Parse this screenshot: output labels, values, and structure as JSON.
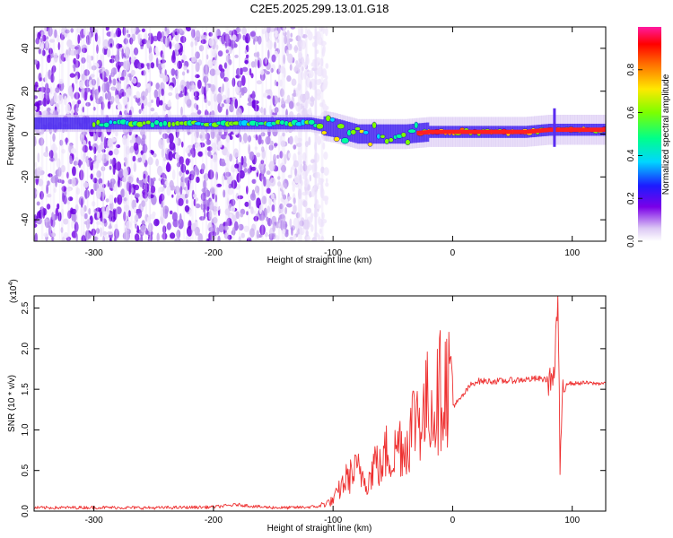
{
  "figure_title": "C2E5.2025.299.13.01.G18",
  "chart_data": [
    {
      "type": "heatmap",
      "title": "C2E5.2025.299.13.01.G18",
      "xlabel": "Height of straight line (km)",
      "ylabel": "Frequency (Hz)",
      "xlim": [
        -350,
        128
      ],
      "ylim": [
        -50,
        50
      ],
      "x_ticks": [
        -300,
        -200,
        -100,
        0,
        100
      ],
      "y_ticks": [
        -40,
        -20,
        0,
        20,
        40
      ],
      "x_tick_labels": [
        "-300",
        "-200",
        "-100",
        "0",
        "100"
      ],
      "y_tick_labels": [
        "-40",
        "-20",
        "0",
        "20",
        "40"
      ],
      "colorbar": {
        "label": "Normalized spectral amplitude",
        "range": [
          0,
          1
        ],
        "ticks": [
          0.0,
          0.2,
          0.4,
          0.6,
          0.8
        ],
        "tick_labels": [
          "0.0",
          "0.2",
          "0.4",
          "0.6",
          "0.8"
        ],
        "colormap": "rainbow (white-violet-blue-cyan-green-yellow-red-magenta)"
      },
      "dominant_frequency_track": {
        "x": [
          -350,
          -300,
          -250,
          -200,
          -150,
          -120,
          -100,
          -80,
          -60,
          -40,
          -20,
          0,
          20,
          40,
          60,
          80,
          100,
          128
        ],
        "y": [
          5,
          5,
          5,
          5,
          5,
          5,
          3,
          0,
          0,
          0,
          1,
          1,
          1,
          1,
          1,
          2,
          2,
          2
        ]
      },
      "noise_region_x": [
        -350,
        -110
      ]
    },
    {
      "type": "line",
      "title": "",
      "xlabel": "Height of straight line (km)",
      "ylabel": "SNR (10 * v/v)",
      "scale_label_base": "(x10",
      "scale_label_exp": "4",
      "scale_label_end": ")",
      "xlim": [
        -350,
        128
      ],
      "ylim": [
        0,
        26500
      ],
      "x_ticks": [
        -300,
        -200,
        -100,
        0,
        100
      ],
      "y_ticks": [
        0,
        5000,
        10000,
        15000,
        20000,
        25000
      ],
      "x_tick_labels": [
        "-300",
        "-200",
        "-100",
        "0",
        "100"
      ],
      "y_tick_labels": [
        "0.0",
        "0.5",
        "1.0",
        "1.5",
        "2.0",
        "2.5"
      ],
      "series": [
        {
          "name": "SNR",
          "color": "#ee3030",
          "x": [
            -350,
            -300,
            -250,
            -200,
            -180,
            -160,
            -140,
            -120,
            -110,
            -100,
            -95,
            -90,
            -85,
            -80,
            -75,
            -70,
            -65,
            -60,
            -55,
            -50,
            -45,
            -40,
            -35,
            -30,
            -25,
            -20,
            -15,
            -10,
            -5,
            0,
            5,
            10,
            15,
            20,
            25,
            30,
            40,
            50,
            60,
            70,
            80,
            85,
            88,
            90,
            92,
            95,
            100,
            110,
            120,
            128
          ],
          "y": [
            400,
            450,
            400,
            500,
            800,
            500,
            400,
            500,
            600,
            1000,
            2000,
            3000,
            3500,
            4000,
            3500,
            3000,
            5000,
            4000,
            6000,
            5000,
            7000,
            6000,
            8000,
            10000,
            9000,
            11000,
            10000,
            12000,
            12500,
            13000,
            13500,
            14500,
            15500,
            16000,
            16000,
            16000,
            16000,
            16100,
            16200,
            16300,
            16200,
            16400,
            26500,
            4500,
            16000,
            15800,
            15700,
            15800,
            15700,
            15800
          ]
        }
      ]
    }
  ]
}
